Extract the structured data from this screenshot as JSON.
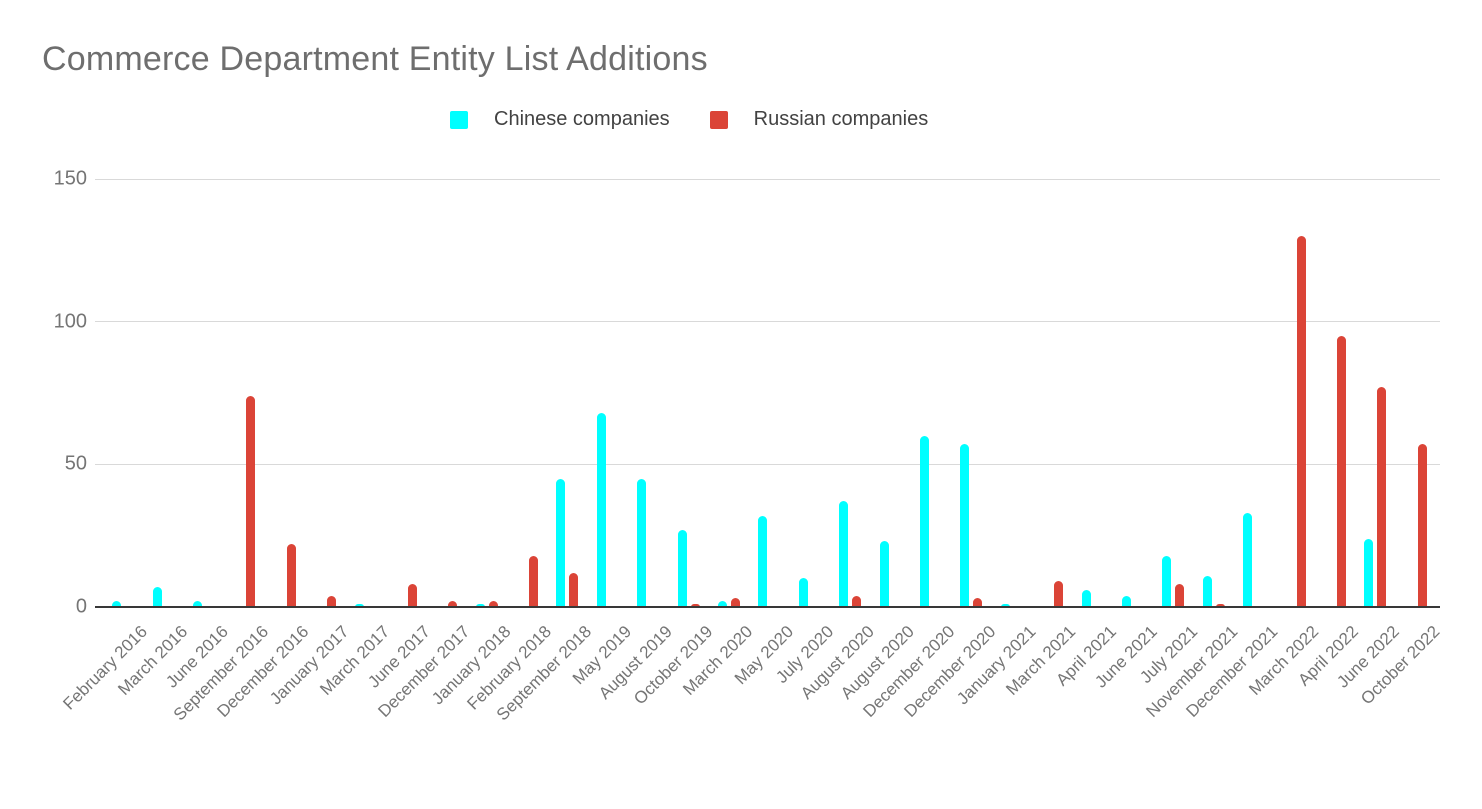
{
  "title": "Commerce Department Entity List Additions",
  "legend": {
    "items": [
      {
        "label": "Chinese companies",
        "color": "#00ffff"
      },
      {
        "label": "Russian companies",
        "color": "#db4437"
      }
    ]
  },
  "colors": {
    "chinese_series": "#00ffff",
    "russian_series": "#db4437",
    "title_text": "#6e6e6e",
    "axis_text": "#757575",
    "gridline": "#d9d9d9",
    "axis_line": "#383838"
  },
  "y_axis": {
    "tick_labels": [
      "0",
      "50",
      "100",
      "150"
    ]
  },
  "chart_data": {
    "type": "bar",
    "title": "Commerce Department Entity List Additions",
    "xlabel": "",
    "ylabel": "",
    "ylim": [
      0,
      150
    ],
    "yticks": [
      0,
      50,
      100,
      150
    ],
    "grid": true,
    "legend_position": "top",
    "categories": [
      "February 2016",
      "March 2016",
      "June 2016",
      "September 2016",
      "December 2016",
      "January 2017",
      "March 2017",
      "June 2017",
      "December 2017",
      "January 2018",
      "February 2018",
      "September 2018",
      "May 2019",
      "August 2019",
      "October 2019",
      "March 2020",
      "May 2020",
      "July 2020",
      "August 2020",
      "August 2020",
      "December 2020",
      "December 2020",
      "January 2021",
      "March 2021",
      "April 2021",
      "June 2021",
      "July 2021",
      "November 2021",
      "December 2021",
      "March 2022",
      "April 2022",
      "June 2022",
      "October 2022"
    ],
    "series": [
      {
        "name": "Chinese companies",
        "color": "#00ffff",
        "values": [
          2,
          7,
          2,
          0,
          0,
          0,
          1,
          0,
          0,
          1,
          0,
          45,
          68,
          45,
          27,
          2,
          32,
          10,
          37,
          23,
          60,
          57,
          1,
          0,
          6,
          4,
          18,
          11,
          33,
          0,
          0,
          24,
          0
        ]
      },
      {
        "name": "Russian companies",
        "color": "#db4437",
        "values": [
          0,
          0,
          0,
          74,
          22,
          4,
          0,
          8,
          2,
          2,
          18,
          12,
          0,
          0,
          1,
          3,
          0,
          0,
          4,
          0,
          0,
          3,
          0,
          9,
          0,
          0,
          8,
          1,
          0,
          130,
          95,
          77,
          57
        ]
      }
    ]
  }
}
